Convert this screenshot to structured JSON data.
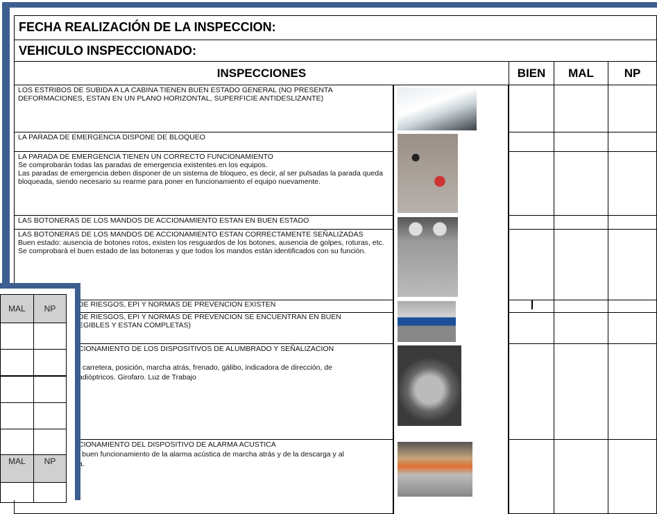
{
  "header": {
    "fecha": "FECHA REALIZACIÓN DE LA INSPECCION:",
    "vehiculo": "VEHICULO INSPECCIONADO:"
  },
  "table": {
    "columns": [
      "INSPECCIONES",
      "BIEN",
      "MAL",
      "NP"
    ],
    "rows": [
      {
        "paragraphs": [
          "LOS ESTRIBOS DE SUBIDA A LA CABINA TIENEN BUEN ESTADO GENERAL (NO PRESENTA DEFORMACIONES, ESTAN EN UN PLANO HORIZONTAL, SUPERFICIE ANTIDESLIZANTE)"
        ]
      },
      {
        "paragraphs": [
          "LA PARADA DE EMERGENCIA DISPONE DE BLOQUEO"
        ]
      },
      {
        "paragraphs": [
          "LA PARADA DE EMERGENCIA TIENEN UN CORRECTO FUNCIONAMIENTO",
          "Se comprobarán todas las paradas de emergencia existentes en los equipos.",
          "Las paradas de emergencia deben disponer de un sistema de bloqueo, es decir, al ser pulsadas la parada queda bloqueada, siendo necesario su rearme para poner en funcionamiento el equipo nuevamente."
        ]
      },
      {
        "paragraphs": [
          "LAS BOTONERAS DE LOS MANDOS DE ACCIONAMIENTO ESTAN EN BUEN ESTADO"
        ]
      },
      {
        "paragraphs": [
          "LAS BOTONERAS DE LOS MANDOS DE ACCIONAMIENTO ESTAN CORRECTAMENTE SEÑALIZADAS",
          "Buen estado: ausencia de botones rotos, existen los resguardos de los botones, ausencia de golpes, roturas, etc.",
          "Se comprobará el buen estado de las botoneras y que todos los mandos están identificados con su función."
        ]
      },
      {
        "lines": [
          "DE RIESGOS, EPI Y NORMAS DE PREVENCION EXISTEN"
        ]
      },
      {
        "lines": [
          "DE RIESGOS, EPI Y NORMAS DE PREVENCION SE ENCUENTRAN EN BUEN",
          "EGIBLES Y ESTAN COMPLETAS)"
        ]
      },
      {
        "lines": [
          "CIONAMIENTO DE LOS DISPOSITIVOS DE ALUMBRADO Y SEÑALIZACION",
          ", carretera, posición, marcha atrás, frenado, gálibo, indicadora de dirección, de",
          "adióptricos. Girofaro. Luz de Trabajo"
        ]
      },
      {
        "lines": [
          "CIONAMIENTO DEL DISPOSITIVO DE ALARMA ACUSTICA",
          "l buen funcionamiento de la alarma acústica de marcha atrás y de la descarga y al",
          "a."
        ]
      }
    ]
  },
  "overlay": {
    "columns": [
      "MAL",
      "NP"
    ],
    "columns_lower": [
      "MAL",
      "NP"
    ]
  }
}
